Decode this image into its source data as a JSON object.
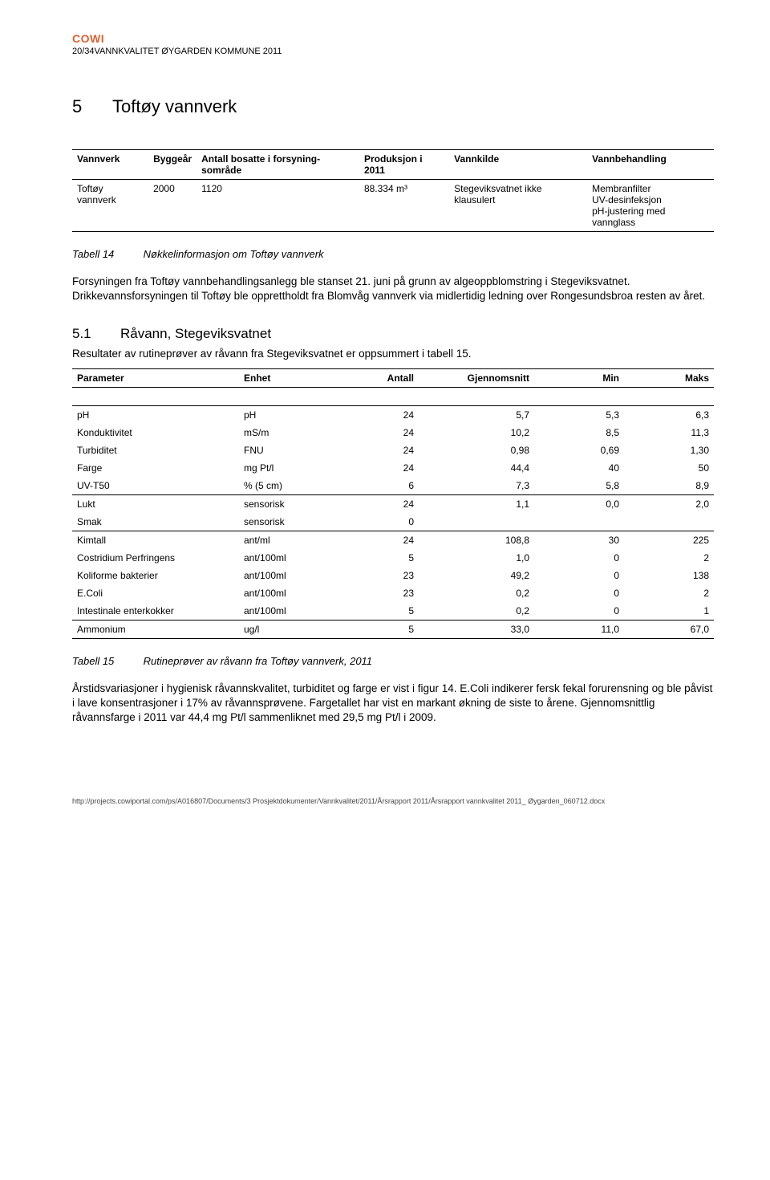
{
  "logo": "COWI",
  "header_line": "20/34VANNKVALITET ØYGARDEN KOMMUNE 2011",
  "section": {
    "num": "5",
    "title": "Toftøy vannverk"
  },
  "table1": {
    "headers": [
      "Vannverk",
      "Byggeår",
      "Antall bosatte i forsyning-sområde",
      "Produksjon i 2011",
      "Vannkilde",
      "Vannbehandling"
    ],
    "row": {
      "vannverk": "Toftøy vannverk",
      "byggear": "2000",
      "antall": "1120",
      "prod": "88.334 m³",
      "kilde": "Stegeviksvatnet ikke klausulert",
      "behandling": "Membranfilter\nUV-desinfeksjon\npH-justering med vannglass"
    }
  },
  "caption14": {
    "label": "Tabell 14",
    "text": "Nøkkelinformasjon om Toftøy vannverk"
  },
  "para1": "Forsyningen fra Toftøy vannbehandlingsanlegg ble stanset 21. juni på grunn av algeoppblomstring i Stegeviksvatnet. Drikkevannsforsyningen til Toftøy ble opprettholdt fra Blomvåg vannverk via midlertidig ledning over Rongesundsbroa resten av året.",
  "subsection": {
    "num": "5.1",
    "title": "Råvann, Stegeviksvatnet"
  },
  "para2": "Resultater av rutineprøver av råvann fra Stegeviksvatnet er oppsummert i tabell 15.",
  "table2": {
    "headers": [
      "Parameter",
      "Enhet",
      "Antall",
      "Gjennomsnitt",
      "Min",
      "Maks"
    ],
    "rows": [
      [
        "pH",
        "pH",
        "24",
        "5,7",
        "5,3",
        "6,3"
      ],
      [
        "Konduktivitet",
        "mS/m",
        "24",
        "10,2",
        "8,5",
        "11,3"
      ],
      [
        "Turbiditet",
        "FNU",
        "24",
        "0,98",
        "0,69",
        "1,30"
      ],
      [
        "Farge",
        "mg Pt/l",
        "24",
        "44,4",
        "40",
        "50"
      ],
      [
        "UV-T50",
        "% (5 cm)",
        "6",
        "7,3",
        "5,8",
        "8,9"
      ],
      [
        "Lukt",
        "sensorisk",
        "24",
        "1,1",
        "0,0",
        "2,0"
      ],
      [
        "Smak",
        "sensorisk",
        "0",
        "",
        "",
        ""
      ],
      [
        "Kimtall",
        "ant/ml",
        "24",
        "108,8",
        "30",
        "225"
      ],
      [
        "Costridium Perfringens",
        "ant/100ml",
        "5",
        "1,0",
        "0",
        "2"
      ],
      [
        "Koliforme bakterier",
        "ant/100ml",
        "23",
        "49,2",
        "0",
        "138"
      ],
      [
        "E.Coli",
        "ant/100ml",
        "23",
        "0,2",
        "0",
        "2"
      ],
      [
        "Intestinale enterkokker",
        "ant/100ml",
        "5",
        "0,2",
        "0",
        "1"
      ],
      [
        "Ammonium",
        "ug/l",
        "5",
        "33,0",
        "11,0",
        "67,0"
      ]
    ],
    "underline_after": [
      4,
      6,
      11,
      12
    ]
  },
  "caption15": {
    "label": "Tabell 15",
    "text": "Rutineprøver av råvann fra Toftøy vannverk, 2011"
  },
  "para3": "Årstidsvariasjoner i hygienisk råvannskvalitet, turbiditet og farge er vist i figur 14. E.Coli indikerer fersk fekal forurensning og ble påvist i lave konsentrasjoner i 17% av råvannsprøvene. Fargetallet har vist en markant økning de siste to årene. Gjennomsnittlig råvannsfarge i 2011 var 44,4 mg Pt/l sammenliknet med 29,5 mg Pt/l i 2009.",
  "footer": "http://projects.cowiportal.com/ps/A016807/Documents/3 Prosjektdokumenter/Vannkvalitet/2011/Årsrapport 2011/Årsrapport vannkvalitet 2011_ Øygarden_060712.docx"
}
